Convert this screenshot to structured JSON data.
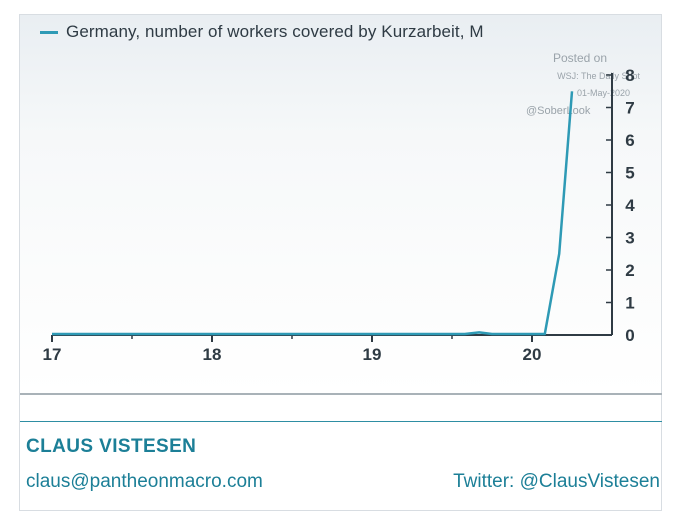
{
  "chart_data": {
    "type": "line",
    "legend": "Germany, number of workers covered by Kurzarbeit, M",
    "x_tick_labels": [
      "17",
      "18",
      "19",
      "20"
    ],
    "y_tick_labels": [
      "0",
      "1",
      "2",
      "3",
      "4",
      "5",
      "6",
      "7",
      "8"
    ],
    "xlim": [
      2017.0,
      2020.5
    ],
    "ylim": [
      0,
      8
    ],
    "y_axis_position": "right",
    "grid": false,
    "color": "#2e9ab5",
    "series": [
      {
        "x": [
          2017.0,
          2018.0,
          2019.0,
          2019.58,
          2019.67,
          2019.75,
          2020.08,
          2020.17,
          2020.25
        ],
        "y": [
          0.03,
          0.03,
          0.03,
          0.03,
          0.08,
          0.03,
          0.03,
          2.5,
          7.5
        ]
      }
    ]
  },
  "watermark": {
    "posted": "Posted on",
    "source": "WSJ: The Daily Shot",
    "date": "01-May-2020",
    "handle": "@SoberLook"
  },
  "footer": {
    "author": "CLAUS VISTESEN",
    "email": "claus@pantheonmacro.com",
    "twitter": "Twitter: @ClausVistesen"
  }
}
